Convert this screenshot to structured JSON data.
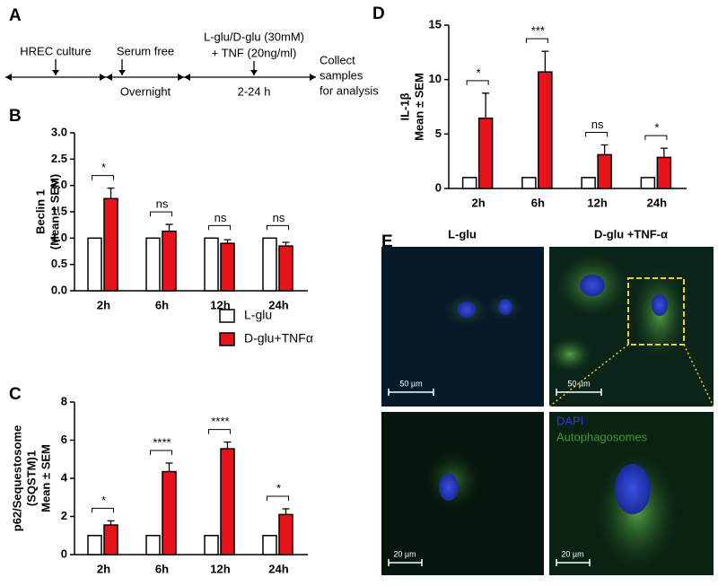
{
  "panel_a": {
    "label": "A",
    "culture": "HREC culture",
    "serum_free": "Serum free",
    "overnight": "Overnight",
    "treatment": [
      "L-glu/D-glu (30mM)",
      "+ TNF (20ng/ml)"
    ],
    "duration": "2-24 h",
    "collect": [
      "Collect",
      "samples",
      "for analysis"
    ]
  },
  "chart_data": [
    {
      "type": "bar",
      "panel_label": "B",
      "ylabel": [
        "Beclin 1",
        "(Mean ± SEM)"
      ],
      "categories": [
        "2h",
        "6h",
        "12h",
        "24h"
      ],
      "series": [
        {
          "name": "L-glu",
          "color": "#ffffff",
          "values": [
            1,
            1,
            1,
            1
          ]
        },
        {
          "name": "D-glu+TNFα",
          "color": "#e8121a",
          "values": [
            1.75,
            1.13,
            0.9,
            0.85
          ],
          "errors": [
            0.2,
            0.13,
            0.07,
            0.07
          ]
        }
      ],
      "annotations": [
        "*",
        "ns",
        "ns",
        "ns"
      ],
      "ylim": [
        0,
        3
      ],
      "yticks": [
        {
          "value": 0,
          "label": "0.0"
        },
        {
          "value": 0.5,
          "label": "0.5"
        },
        {
          "value": 1,
          "label": "1.0"
        },
        {
          "value": 1.5,
          "label": "1.5"
        },
        {
          "value": 2,
          "label": "2.0"
        },
        {
          "value": 2.5,
          "label": "2.5"
        },
        {
          "value": 3,
          "label": "3.0"
        }
      ]
    },
    {
      "type": "bar",
      "panel_label": "C",
      "ylabel": [
        "p62/Sequestosome",
        "(SQSTM)1",
        "Mean ± SEM"
      ],
      "categories": [
        "2h",
        "6h",
        "12h",
        "24h"
      ],
      "series": [
        {
          "color": "#ffffff",
          "values": [
            1,
            1,
            1,
            1
          ]
        },
        {
          "color": "#e8121a",
          "values": [
            1.55,
            4.35,
            5.55,
            2.1
          ],
          "errors": [
            0.22,
            0.45,
            0.35,
            0.3
          ]
        }
      ],
      "annotations": [
        "*",
        "****",
        "****",
        "*"
      ],
      "ylim": [
        0,
        8
      ],
      "yticks": [
        0,
        2,
        4,
        6,
        8
      ]
    },
    {
      "type": "bar",
      "panel_label": "D",
      "ylabel": [
        "IL-1β",
        "Mean ± SEM"
      ],
      "categories": [
        "2h",
        "6h",
        "12h",
        "24h"
      ],
      "series": [
        {
          "color": "#ffffff",
          "values": [
            1,
            1,
            1,
            1
          ]
        },
        {
          "color": "#e8121a",
          "values": [
            6.45,
            10.7,
            3.1,
            2.85
          ],
          "errors": [
            2.3,
            1.9,
            0.9,
            0.85
          ]
        }
      ],
      "annotations": [
        "*",
        "***",
        "ns",
        "*"
      ],
      "ylim": [
        0,
        15
      ],
      "yticks": [
        0,
        5,
        10,
        15
      ]
    }
  ],
  "panel_e": {
    "label": "E",
    "columns": [
      "L-glu",
      "D-glu +TNF-α"
    ],
    "scale_bars": [
      "50 µm",
      "50 µm",
      "20 µm",
      "20 µm"
    ],
    "stains": [
      "DAPI",
      "Autophagosomes"
    ]
  }
}
